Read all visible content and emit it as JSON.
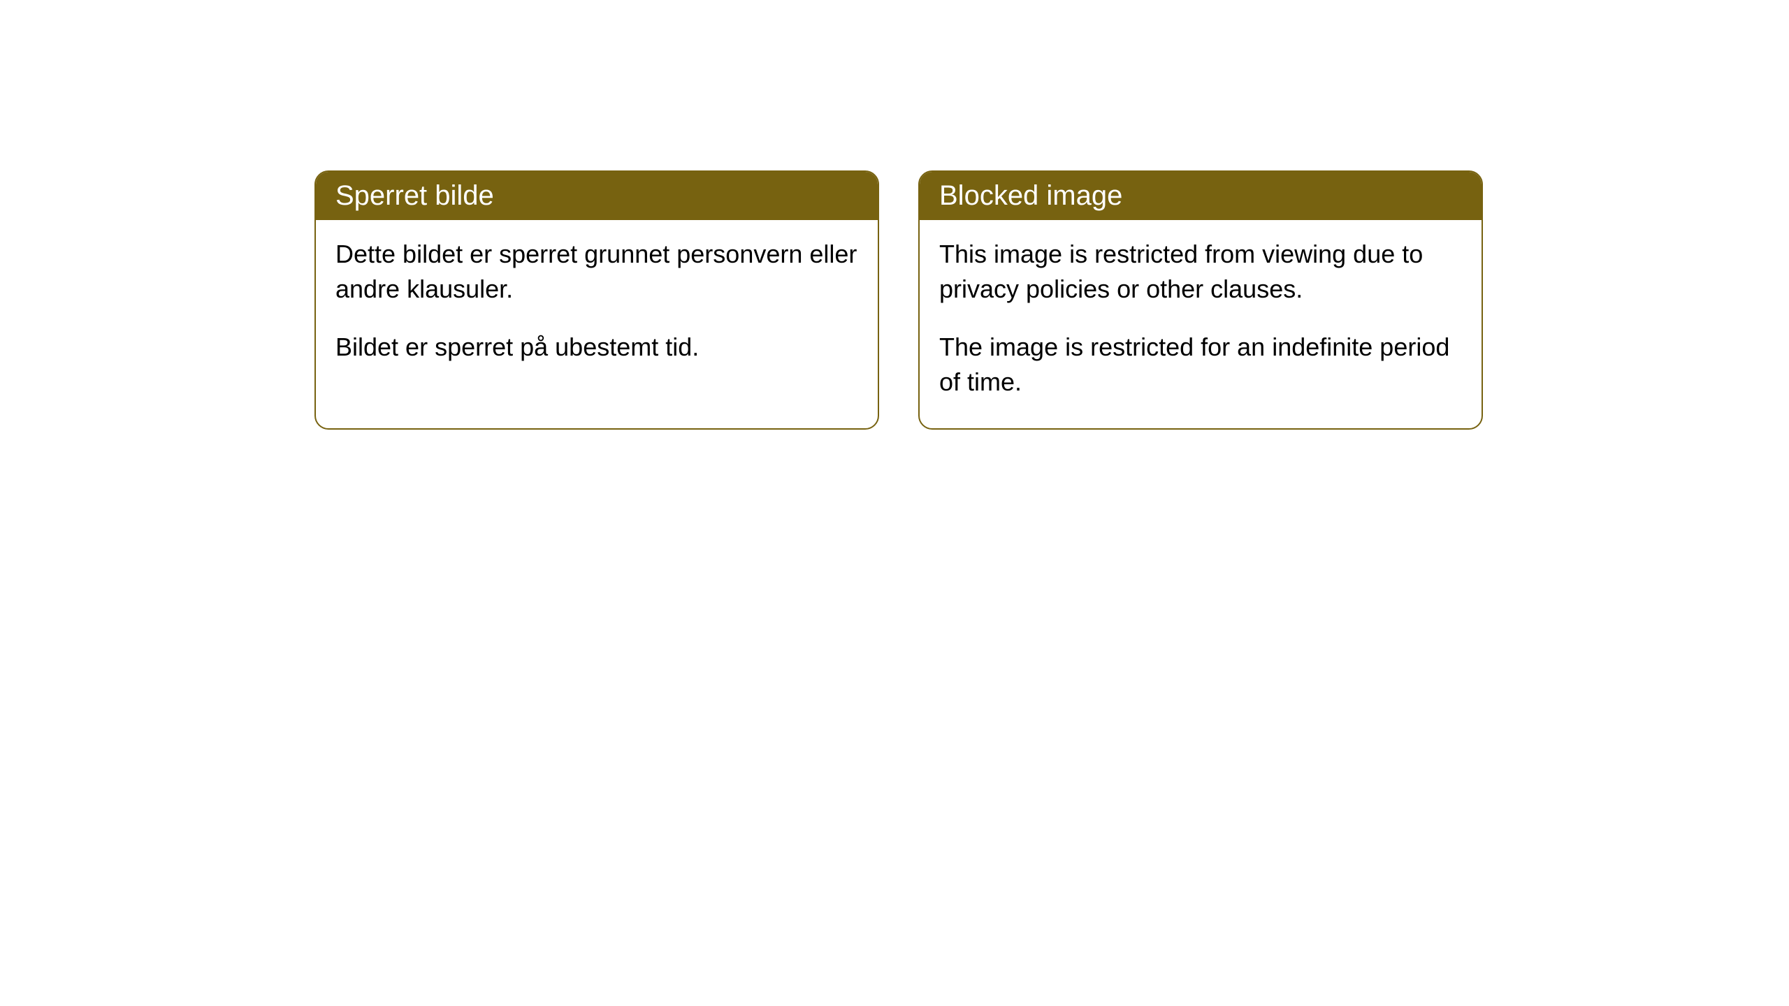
{
  "cards": [
    {
      "title": "Sperret bilde",
      "paragraph1": "Dette bildet er sperret grunnet personvern eller andre klausuler.",
      "paragraph2": "Bildet er sperret på ubestemt tid."
    },
    {
      "title": "Blocked image",
      "paragraph1": "This image is restricted from viewing due to privacy policies or other clauses.",
      "paragraph2": "The image is restricted for an indefinite period of time."
    }
  ],
  "styling": {
    "card_border_color": "#776210",
    "card_header_bg": "#776210",
    "card_header_text_color": "#ffffff",
    "card_body_bg": "#ffffff",
    "card_body_text_color": "#000000",
    "card_border_radius": 20,
    "header_fontsize": 40,
    "body_fontsize": 36,
    "page_bg": "#ffffff"
  }
}
